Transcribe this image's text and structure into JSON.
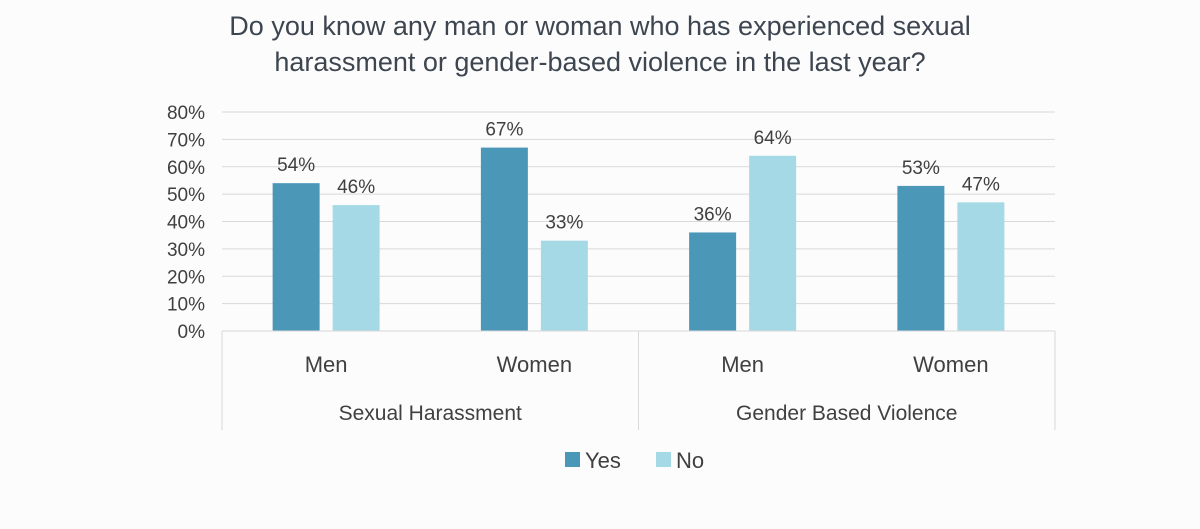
{
  "title_line1": "Do you know any man or woman who has experienced sexual",
  "title_line2": "harassment or gender-based violence in the last year?",
  "chart_data": {
    "type": "bar",
    "title": "Do you know any man or woman who has experienced sexual harassment or gender-based violence in the last year?",
    "groups": [
      {
        "label": "Sexual Harassment",
        "categories": [
          "Men",
          "Women"
        ]
      },
      {
        "label": "Gender Based Violence",
        "categories": [
          "Men",
          "Women"
        ]
      }
    ],
    "categories": [
      "Men",
      "Women",
      "Men",
      "Women"
    ],
    "series": [
      {
        "name": "Yes",
        "color": "#4a97b8",
        "values": [
          54,
          67,
          36,
          53
        ],
        "labels": [
          "54%",
          "67%",
          "36%",
          "53%"
        ]
      },
      {
        "name": "No",
        "color": "#a6d9e6",
        "values": [
          46,
          33,
          64,
          47
        ],
        "labels": [
          "46%",
          "33%",
          "64%",
          "47%"
        ]
      }
    ],
    "y_ticks": [
      "0%",
      "10%",
      "20%",
      "30%",
      "40%",
      "50%",
      "60%",
      "70%",
      "80%"
    ],
    "ylim": [
      0,
      80
    ],
    "grid": true,
    "legend_position": "bottom"
  }
}
